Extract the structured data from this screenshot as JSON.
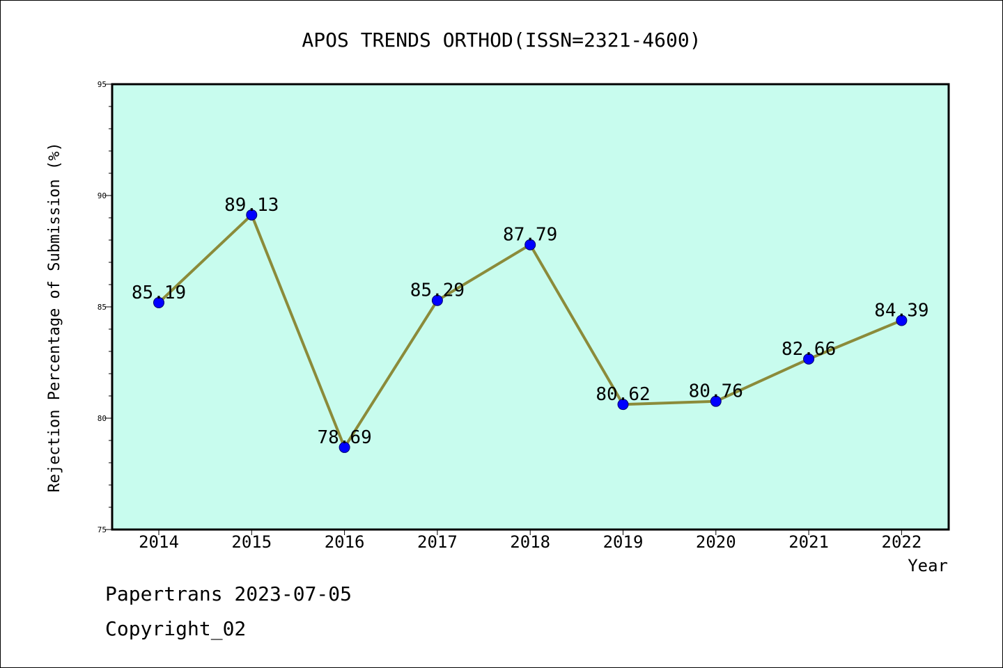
{
  "chart_data": {
    "type": "line",
    "title": "APOS TRENDS ORTHOD(ISSN=2321-4600)",
    "xlabel": "Year",
    "ylabel": "Rejection Percentage of Submission (%)",
    "categories": [
      "2014",
      "2015",
      "2016",
      "2017",
      "2018",
      "2019",
      "2020",
      "2021",
      "2022"
    ],
    "series": [
      {
        "values": [
          85.19,
          89.13,
          78.69,
          85.29,
          87.79,
          80.62,
          80.76,
          82.66,
          84.39
        ]
      }
    ],
    "data_labels": [
      "85.19",
      "89.13",
      "78.69",
      "85.29",
      "87.79",
      "80.62",
      "80.76",
      "82.66",
      "84.39"
    ],
    "ylim": [
      75,
      95
    ],
    "yticks": [
      "75",
      "80",
      "85",
      "90",
      "95"
    ],
    "grid": false,
    "legend": "none",
    "colors": {
      "plot_background": "#c8fcee",
      "line": "#8b8b3a",
      "marker": "#0000ff",
      "axis": "#000000"
    }
  },
  "footer": {
    "line1": "Papertrans 2023-07-05",
    "line2": "Copyright_02"
  }
}
